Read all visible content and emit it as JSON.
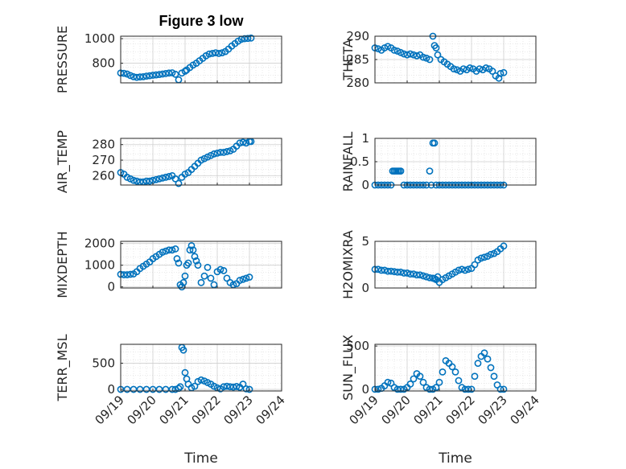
{
  "figure": {
    "title": "Figure 3 low"
  },
  "colors": {
    "marker": "#0072bd",
    "axis": "#262626",
    "grid": "#dcdcdc",
    "background": "#ffffff"
  },
  "chart_data": [
    {
      "type": "scatter",
      "id": "pressure",
      "title": "Figure 3 low",
      "xlabel": "",
      "ylabel": "PRESSURE",
      "xlim": [
        0,
        5
      ],
      "ylim": [
        640,
        1020
      ],
      "xticks": [],
      "yticks": [
        800,
        1000
      ],
      "yticklabels": [
        "800",
        "1000"
      ],
      "x": [
        0,
        0.1,
        0.2,
        0.3,
        0.4,
        0.5,
        0.6,
        0.7,
        0.8,
        0.9,
        1.0,
        1.1,
        1.2,
        1.3,
        1.4,
        1.5,
        1.6,
        1.7,
        1.8,
        1.9,
        2.0,
        2.05,
        2.15,
        2.25,
        2.35,
        2.45,
        2.55,
        2.65,
        2.75,
        2.85,
        2.95,
        3.05,
        3.15,
        3.25,
        3.35,
        3.45,
        3.55,
        3.65,
        3.75,
        3.85,
        3.95,
        4.05
      ],
      "y": [
        720,
        718,
        712,
        700,
        690,
        685,
        688,
        690,
        695,
        698,
        702,
        705,
        708,
        712,
        716,
        720,
        722,
        710,
        665,
        720,
        735,
        745,
        765,
        785,
        800,
        820,
        840,
        860,
        875,
        880,
        885,
        880,
        885,
        895,
        915,
        940,
        960,
        980,
        995,
        1000,
        1002,
        1005
      ]
    },
    {
      "type": "scatter",
      "id": "theta",
      "xlabel": "",
      "ylabel": "THETA",
      "xlim": [
        0,
        5
      ],
      "ylim": [
        280,
        290
      ],
      "xticks": [],
      "yticks": [
        280,
        285,
        290
      ],
      "yticklabels": [
        "280",
        "285",
        "290"
      ],
      "x": [
        0,
        0.1,
        0.2,
        0.3,
        0.4,
        0.5,
        0.6,
        0.7,
        0.8,
        0.9,
        1.0,
        1.1,
        1.2,
        1.3,
        1.4,
        1.5,
        1.6,
        1.7,
        1.8,
        1.85,
        1.9,
        1.95,
        2.05,
        2.15,
        2.25,
        2.35,
        2.45,
        2.55,
        2.65,
        2.75,
        2.85,
        2.95,
        3.05,
        3.15,
        3.25,
        3.35,
        3.45,
        3.55,
        3.65,
        3.75,
        3.85,
        3.9,
        4.0
      ],
      "y": [
        287.5,
        287.3,
        287.0,
        287.5,
        287.8,
        287.5,
        287.0,
        286.8,
        286.5,
        286.2,
        286.0,
        286.2,
        286.0,
        285.8,
        286.0,
        285.5,
        285.3,
        285.0,
        290.0,
        288.0,
        287.5,
        286.0,
        285.0,
        284.5,
        284.0,
        283.5,
        283.0,
        282.8,
        282.5,
        283.0,
        282.8,
        283.2,
        283.0,
        282.5,
        283.0,
        282.8,
        283.2,
        283.0,
        282.5,
        281.5,
        281.0,
        282.0,
        282.2
      ]
    },
    {
      "type": "scatter",
      "id": "air_temp",
      "xlabel": "",
      "ylabel": "AIR_TEMP",
      "xlim": [
        0,
        5
      ],
      "ylim": [
        254,
        284
      ],
      "xticks": [],
      "yticks": [
        260,
        270,
        280
      ],
      "yticklabels": [
        "260",
        "270",
        "280"
      ],
      "x": [
        0,
        0.1,
        0.2,
        0.3,
        0.4,
        0.5,
        0.6,
        0.7,
        0.8,
        0.9,
        1.0,
        1.1,
        1.2,
        1.3,
        1.4,
        1.5,
        1.6,
        1.7,
        1.8,
        1.9,
        2.0,
        2.1,
        2.2,
        2.3,
        2.4,
        2.5,
        2.6,
        2.7,
        2.8,
        2.9,
        3.0,
        3.1,
        3.2,
        3.3,
        3.4,
        3.5,
        3.6,
        3.7,
        3.8,
        3.9,
        4.0,
        4.05
      ],
      "y": [
        262,
        261,
        259,
        258,
        257,
        256.5,
        256,
        256,
        256.5,
        256.5,
        257,
        257.5,
        258,
        258.5,
        259,
        259.5,
        260,
        258,
        255,
        259,
        261,
        262,
        264,
        266,
        268,
        270,
        271,
        272,
        273,
        274,
        274.5,
        275,
        275,
        275.5,
        276,
        277,
        279,
        281,
        281.5,
        281,
        282,
        282
      ]
    },
    {
      "type": "scatter",
      "id": "rainfall",
      "xlabel": "",
      "ylabel": "RAINFALL",
      "xlim": [
        0,
        5
      ],
      "ylim": [
        0,
        1
      ],
      "xticks": [],
      "yticks": [
        0,
        0.5,
        1
      ],
      "yticklabels": [
        "0",
        "0.5",
        "1"
      ],
      "x": [
        0,
        0.1,
        0.2,
        0.3,
        0.4,
        0.5,
        0.55,
        0.6,
        0.65,
        0.7,
        0.75,
        0.8,
        0.9,
        1.0,
        1.1,
        1.2,
        1.3,
        1.4,
        1.5,
        1.6,
        1.7,
        1.75,
        1.8,
        1.85,
        1.9,
        2.0,
        2.1,
        2.2,
        2.3,
        2.4,
        2.5,
        2.6,
        2.7,
        2.8,
        2.9,
        3.0,
        3.1,
        3.2,
        3.3,
        3.4,
        3.5,
        3.6,
        3.7,
        3.8,
        3.9,
        4.0
      ],
      "y": [
        0,
        0,
        0,
        0,
        0,
        0,
        0.3,
        0.3,
        0.3,
        0.3,
        0.3,
        0.3,
        0,
        0,
        0,
        0,
        0,
        0,
        0,
        0,
        0.3,
        0,
        0.9,
        0.9,
        0,
        0,
        0,
        0,
        0,
        0,
        0,
        0,
        0,
        0,
        0,
        0,
        0,
        0,
        0,
        0,
        0,
        0,
        0,
        0,
        0,
        0
      ]
    },
    {
      "type": "scatter",
      "id": "mixdepth",
      "xlabel": "",
      "ylabel": "MIXDEPTH",
      "xlim": [
        0,
        5
      ],
      "ylim": [
        -50,
        2100
      ],
      "xticks": [],
      "yticks": [
        0,
        1000,
        2000
      ],
      "yticklabels": [
        "0",
        "1000",
        "2000"
      ],
      "x": [
        0,
        0.1,
        0.2,
        0.3,
        0.4,
        0.5,
        0.6,
        0.7,
        0.8,
        0.9,
        1.0,
        1.1,
        1.2,
        1.3,
        1.4,
        1.5,
        1.6,
        1.7,
        1.75,
        1.8,
        1.85,
        1.9,
        1.95,
        2.0,
        2.05,
        2.1,
        2.15,
        2.2,
        2.25,
        2.3,
        2.35,
        2.4,
        2.5,
        2.6,
        2.7,
        2.8,
        2.9,
        3.0,
        3.1,
        3.2,
        3.3,
        3.4,
        3.5,
        3.6,
        3.7,
        3.8,
        3.9,
        4.0
      ],
      "y": [
        580,
        560,
        560,
        580,
        600,
        700,
        850,
        950,
        1050,
        1150,
        1300,
        1400,
        1500,
        1600,
        1650,
        1700,
        1700,
        1750,
        1300,
        1100,
        100,
        0,
        200,
        500,
        1000,
        1100,
        1700,
        1900,
        1700,
        1400,
        1200,
        1000,
        200,
        500,
        900,
        400,
        100,
        700,
        800,
        750,
        400,
        200,
        100,
        150,
        300,
        350,
        400,
        450
      ]
    },
    {
      "type": "scatter",
      "id": "h2omixra",
      "xlabel": "",
      "ylabel": "H2OMIXRA",
      "xlim": [
        0,
        5
      ],
      "ylim": [
        0,
        5
      ],
      "xticks": [],
      "yticks": [
        0,
        5
      ],
      "yticklabels": [
        "0",
        "5"
      ],
      "x": [
        0,
        0.1,
        0.2,
        0.3,
        0.4,
        0.5,
        0.6,
        0.7,
        0.8,
        0.9,
        1.0,
        1.1,
        1.2,
        1.3,
        1.4,
        1.5,
        1.6,
        1.7,
        1.8,
        1.85,
        1.9,
        1.95,
        2.0,
        2.1,
        2.2,
        2.3,
        2.4,
        2.5,
        2.6,
        2.7,
        2.8,
        2.9,
        3.0,
        3.1,
        3.2,
        3.3,
        3.4,
        3.5,
        3.6,
        3.7,
        3.8,
        3.9,
        4.0
      ],
      "y": [
        2.0,
        2.0,
        1.9,
        1.9,
        1.8,
        1.8,
        1.75,
        1.7,
        1.7,
        1.6,
        1.6,
        1.5,
        1.5,
        1.4,
        1.4,
        1.3,
        1.2,
        1.1,
        1.05,
        1.0,
        0.9,
        1.2,
        0.6,
        0.9,
        1.1,
        1.3,
        1.5,
        1.7,
        1.9,
        2.0,
        1.9,
        2.0,
        2.1,
        2.5,
        3.0,
        3.2,
        3.3,
        3.4,
        3.6,
        3.7,
        3.9,
        4.2,
        4.5
      ]
    },
    {
      "type": "scatter",
      "id": "terr_msl",
      "xlabel": "Time",
      "ylabel": "TERR_MSL",
      "xlim": [
        0,
        5
      ],
      "ylim": [
        -30,
        860
      ],
      "xticks": [
        0,
        1,
        2,
        3,
        4,
        5
      ],
      "xticklabels": [
        "09/19",
        "09/20",
        "09/21",
        "09/22",
        "09/23",
        "09/24"
      ],
      "yticks": [
        0,
        500
      ],
      "yticklabels": [
        "0",
        "500"
      ],
      "x": [
        0,
        0.2,
        0.4,
        0.6,
        0.8,
        1.0,
        1.2,
        1.4,
        1.6,
        1.7,
        1.8,
        1.85,
        1.9,
        1.95,
        2.0,
        2.05,
        2.1,
        2.2,
        2.3,
        2.4,
        2.5,
        2.6,
        2.7,
        2.8,
        2.9,
        3.0,
        3.1,
        3.2,
        3.3,
        3.4,
        3.5,
        3.6,
        3.7,
        3.8,
        3.9,
        4.0
      ],
      "y": [
        0,
        0,
        0,
        0,
        0,
        0,
        0,
        0,
        0,
        0,
        20,
        50,
        800,
        750,
        320,
        200,
        100,
        30,
        60,
        150,
        180,
        160,
        130,
        100,
        60,
        30,
        10,
        50,
        60,
        50,
        45,
        55,
        40,
        100,
        10,
        0
      ]
    },
    {
      "type": "scatter",
      "id": "sun_flux",
      "xlabel": "Time",
      "ylabel": "SUN_FLUX",
      "xlim": [
        0,
        5
      ],
      "ylim": [
        -20,
        520
      ],
      "xticks": [
        0,
        1,
        2,
        3,
        4,
        5
      ],
      "xticklabels": [
        "09/19",
        "09/20",
        "09/21",
        "09/22",
        "09/23",
        "09/24"
      ],
      "yticks": [
        0,
        500
      ],
      "yticklabels": [
        "0",
        "500"
      ],
      "x": [
        0,
        0.1,
        0.2,
        0.3,
        0.4,
        0.5,
        0.6,
        0.7,
        0.8,
        0.9,
        1.0,
        1.1,
        1.2,
        1.3,
        1.4,
        1.5,
        1.6,
        1.7,
        1.8,
        1.9,
        2.0,
        2.1,
        2.2,
        2.3,
        2.4,
        2.5,
        2.6,
        2.7,
        2.8,
        2.9,
        3.0,
        3.1,
        3.2,
        3.3,
        3.4,
        3.5,
        3.6,
        3.7,
        3.8,
        3.9,
        4.0
      ],
      "y": [
        0,
        0,
        10,
        40,
        80,
        70,
        20,
        0,
        0,
        0,
        20,
        60,
        120,
        180,
        150,
        80,
        20,
        0,
        0,
        20,
        80,
        200,
        330,
        300,
        260,
        200,
        100,
        20,
        0,
        0,
        0,
        150,
        300,
        380,
        420,
        350,
        250,
        150,
        50,
        0,
        0
      ]
    }
  ]
}
